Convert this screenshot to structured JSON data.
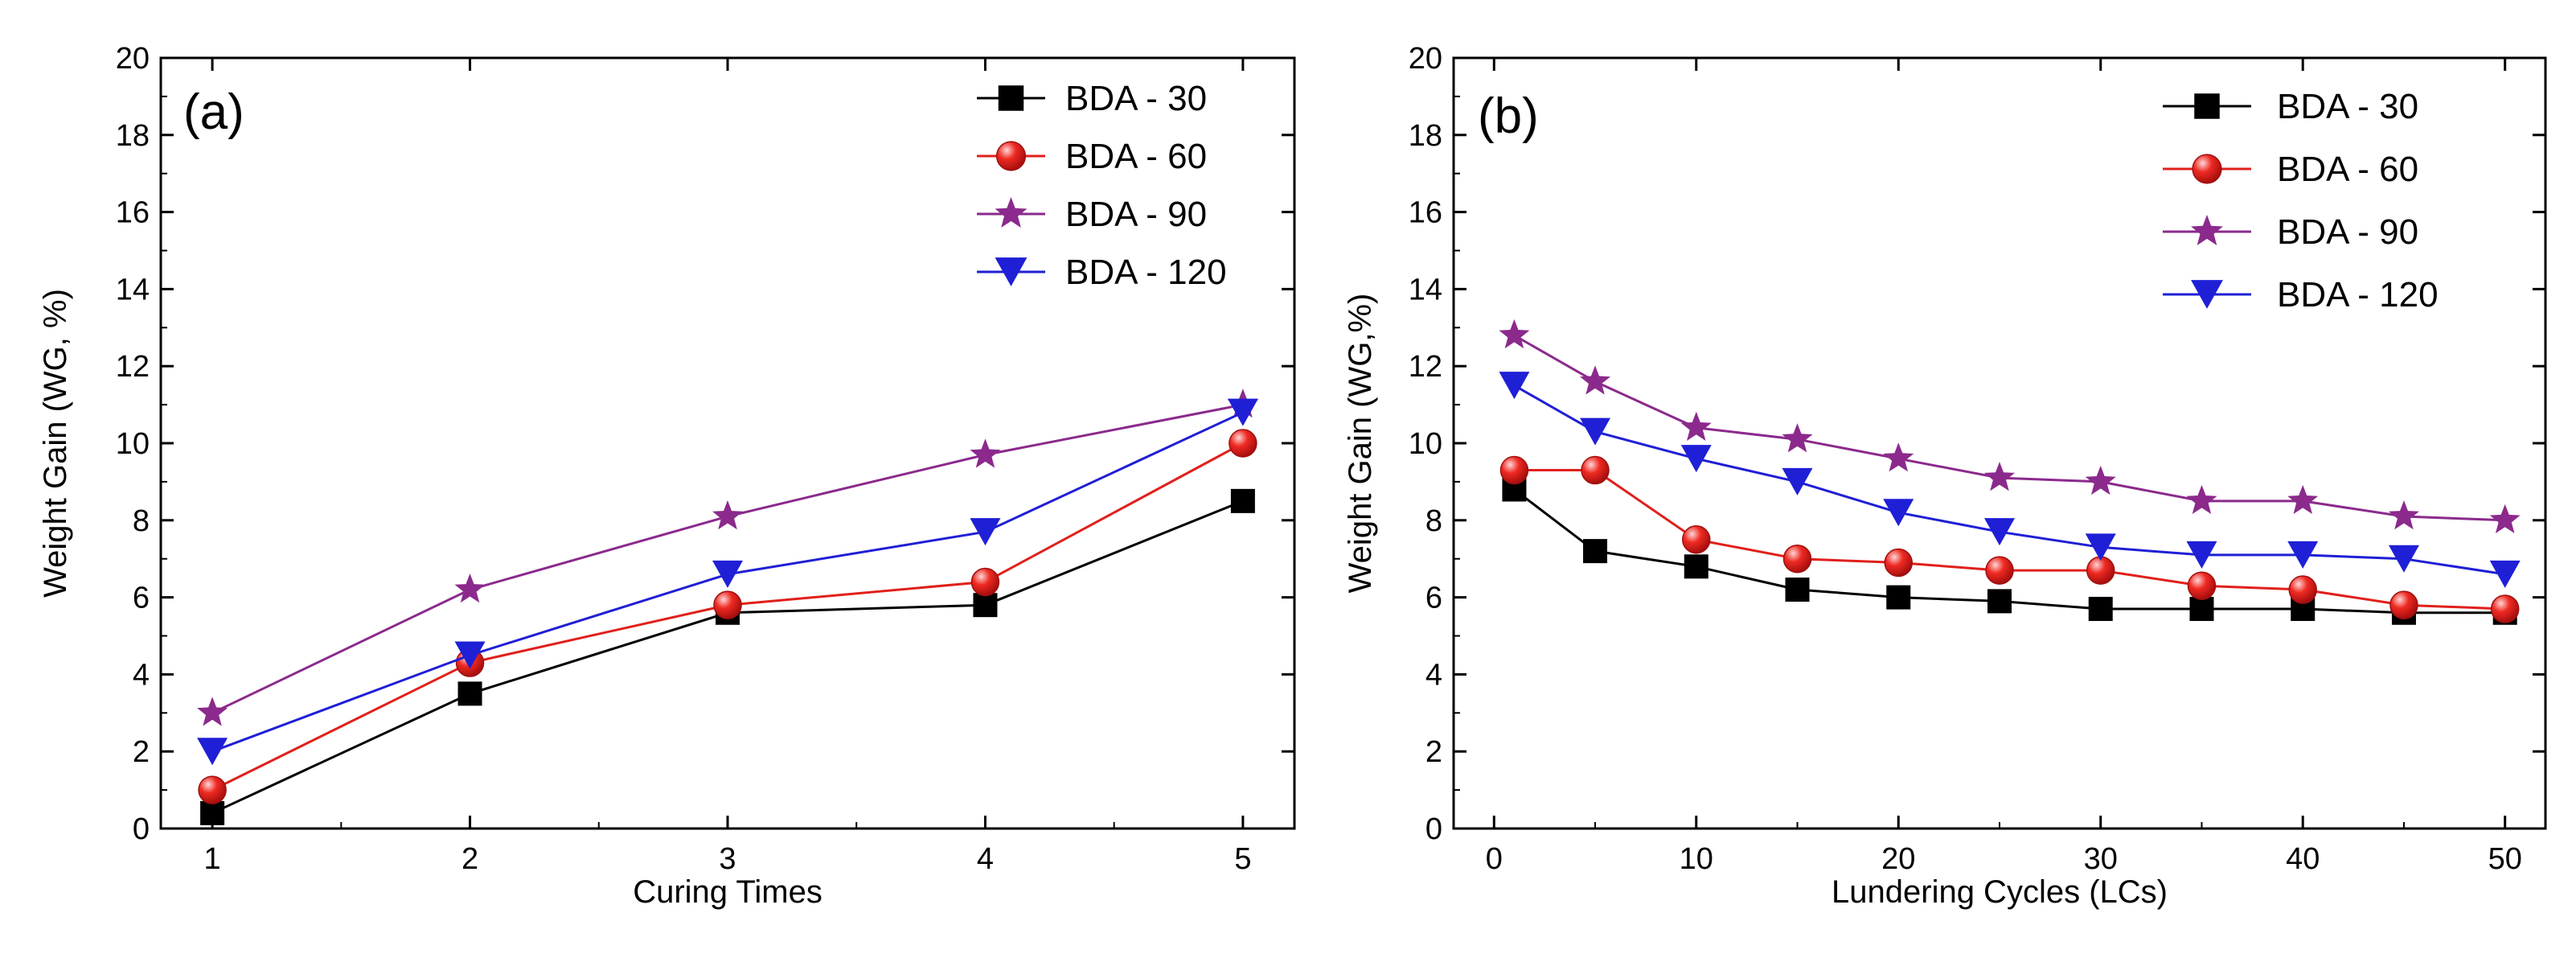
{
  "colors": {
    "BDA - 30": "#000000",
    "BDA - 60": "#e0201b",
    "BDA - 90": "#8b2a8c",
    "BDA - 120": "#1f1fd6"
  },
  "chart_data": [
    {
      "type": "line",
      "panel_label": "(a)",
      "xlabel": "Curing Times",
      "ylabel": "Weight Gain (WG, %)",
      "x": [
        1,
        2,
        3,
        4,
        5
      ],
      "xticks": [
        1,
        2,
        3,
        4,
        5
      ],
      "xlim": [
        0.8,
        5.2
      ],
      "ylim": [
        0,
        20
      ],
      "yticks": [
        0,
        2,
        4,
        6,
        8,
        10,
        12,
        14,
        16,
        18,
        20
      ],
      "legend_position": "top-right",
      "series": [
        {
          "name": "BDA - 30",
          "marker": "square",
          "values": [
            0.4,
            3.5,
            5.6,
            5.8,
            8.5
          ]
        },
        {
          "name": "BDA - 60",
          "marker": "circle",
          "values": [
            1.0,
            4.3,
            5.8,
            6.4,
            10.0
          ]
        },
        {
          "name": "BDA - 90",
          "marker": "star",
          "values": [
            3.0,
            6.2,
            8.1,
            9.7,
            11.0
          ]
        },
        {
          "name": "BDA - 120",
          "marker": "triangle-down",
          "values": [
            2.0,
            4.5,
            6.6,
            7.7,
            10.8
          ]
        }
      ]
    },
    {
      "type": "line",
      "panel_label": "(b)",
      "xlabel": "Lundering Cycles (LCs)",
      "ylabel": "Weight Gain (WG,%)",
      "x": [
        1,
        5,
        10,
        15,
        20,
        25,
        30,
        35,
        40,
        45,
        50
      ],
      "xticks": [
        0,
        10,
        20,
        30,
        40,
        50
      ],
      "xlim": [
        -2,
        52
      ],
      "ylim": [
        0,
        20
      ],
      "yticks": [
        0,
        2,
        4,
        6,
        8,
        10,
        12,
        14,
        16,
        18,
        20
      ],
      "legend_position": "top-right",
      "series": [
        {
          "name": "BDA - 30",
          "marker": "square",
          "values": [
            8.8,
            7.2,
            6.8,
            6.2,
            6.0,
            5.9,
            5.7,
            5.7,
            5.7,
            5.6,
            5.6
          ]
        },
        {
          "name": "BDA - 60",
          "marker": "circle",
          "values": [
            9.3,
            9.3,
            7.5,
            7.0,
            6.9,
            6.7,
            6.7,
            6.3,
            6.2,
            5.8,
            5.7
          ]
        },
        {
          "name": "BDA - 90",
          "marker": "star",
          "values": [
            12.8,
            11.6,
            10.4,
            10.1,
            9.6,
            9.1,
            9.0,
            8.5,
            8.5,
            8.1,
            8.0
          ]
        },
        {
          "name": "BDA - 120",
          "marker": "triangle-down",
          "values": [
            11.5,
            10.3,
            9.6,
            9.0,
            8.2,
            7.7,
            7.3,
            7.1,
            7.1,
            7.0,
            6.6
          ]
        }
      ]
    }
  ]
}
